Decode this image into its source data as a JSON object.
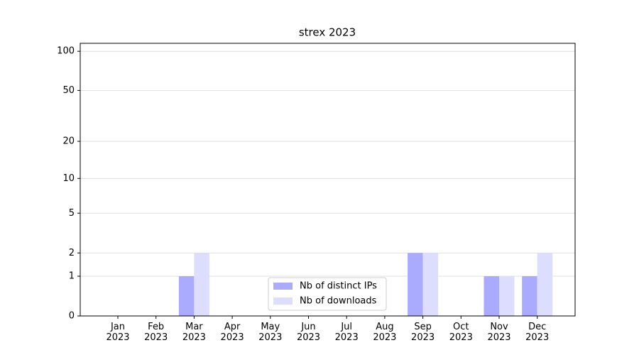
{
  "chart_data": {
    "type": "bar",
    "title": "strex 2023",
    "categories": [
      "Jan 2023",
      "Feb 2023",
      "Mar 2023",
      "Apr 2023",
      "May 2023",
      "Jun 2023",
      "Jul 2023",
      "Aug 2023",
      "Sep 2023",
      "Oct 2023",
      "Nov 2023",
      "Dec 2023"
    ],
    "series": [
      {
        "name": "Nb of distinct IPs",
        "color": "#aaaaff",
        "values": [
          0,
          0,
          1,
          0,
          0,
          0,
          0,
          0,
          2,
          0,
          1,
          1
        ]
      },
      {
        "name": "Nb of downloads",
        "color": "#ddddff",
        "values": [
          0,
          0,
          2,
          0,
          0,
          0,
          0,
          0,
          2,
          0,
          1,
          2
        ]
      }
    ],
    "yscale": "log1p",
    "ylim": [
      0,
      115
    ],
    "yticks": [
      0,
      1,
      2,
      5,
      10,
      20,
      50,
      100
    ],
    "grid": true,
    "legend": "lower center"
  }
}
